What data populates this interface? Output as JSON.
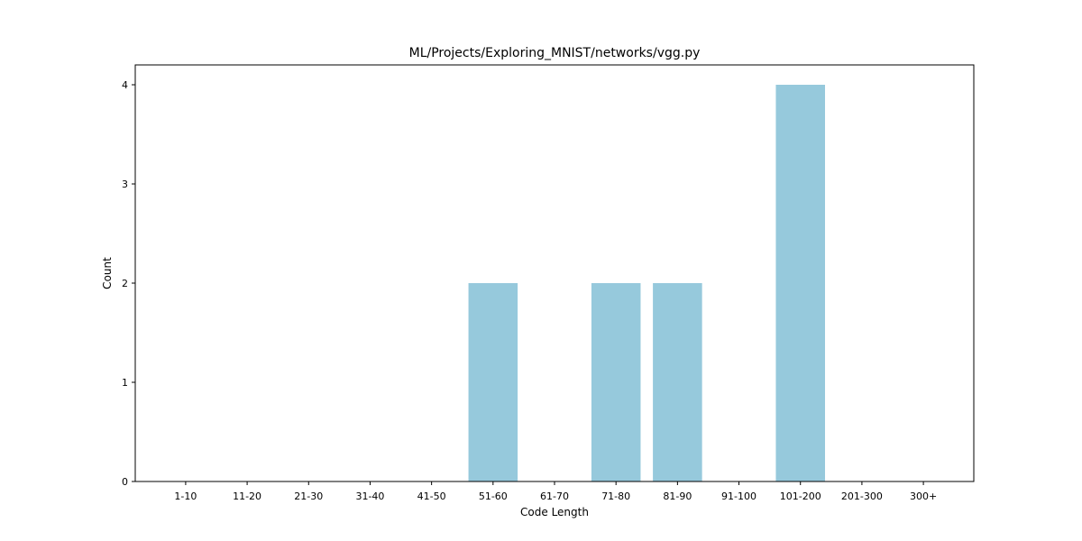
{
  "chart_data": {
    "type": "bar",
    "title": "ML/Projects/Exploring_MNIST/networks/vgg.py",
    "xlabel": "Code Length",
    "ylabel": "Count",
    "categories": [
      "1-10",
      "11-20",
      "21-30",
      "31-40",
      "41-50",
      "51-60",
      "61-70",
      "71-80",
      "81-90",
      "91-100",
      "101-200",
      "201-300",
      "300+"
    ],
    "values": [
      0,
      0,
      0,
      0,
      0,
      2,
      0,
      2,
      2,
      0,
      4,
      0,
      0
    ],
    "yticks": [
      0,
      1,
      2,
      3,
      4
    ],
    "ylim": [
      0,
      4.2
    ],
    "bar_color": "#96c9dc",
    "grid": false,
    "legend": false
  }
}
